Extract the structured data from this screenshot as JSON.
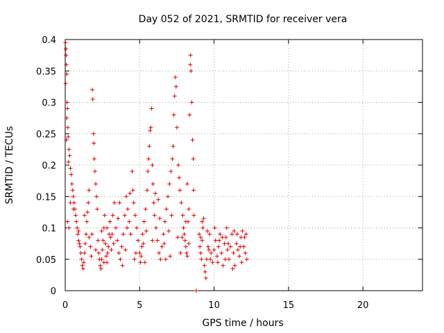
{
  "chart_data": {
    "type": "scatter",
    "title": "Day 052 of 2021, SRMTID for receiver vera",
    "xlabel": "GPS time / hours",
    "ylabel": "SRMTID / TECUs",
    "xlim": [
      0,
      24
    ],
    "ylim": [
      0,
      0.4
    ],
    "xticks": [
      0,
      5,
      10,
      15,
      20
    ],
    "xtick_labels": [
      "0",
      "5",
      "10",
      "15",
      "20"
    ],
    "yticks": [
      0,
      0.05,
      0.1,
      0.15,
      0.2,
      0.25,
      0.3,
      0.35,
      0.4
    ],
    "ytick_labels": [
      "0",
      "0.05",
      "0.1",
      "0.15",
      "0.2",
      "0.25",
      "0.3",
      "0.35",
      "0.4"
    ],
    "grid": true,
    "marker": "plus",
    "color": "#e00000",
    "series": [
      {
        "name": "SRMTID",
        "points": [
          [
            0.02,
            0.395
          ],
          [
            0.05,
            0.385
          ],
          [
            0.06,
            0.375
          ],
          [
            0.08,
            0.36
          ],
          [
            0.1,
            0.345
          ],
          [
            0.03,
            0.33
          ],
          [
            0.12,
            0.3
          ],
          [
            0.15,
            0.29
          ],
          [
            0.1,
            0.275
          ],
          [
            0.18,
            0.26
          ],
          [
            0.2,
            0.245
          ],
          [
            0.08,
            0.24
          ],
          [
            0.25,
            0.225
          ],
          [
            0.3,
            0.215
          ],
          [
            0.22,
            0.205
          ],
          [
            0.35,
            0.195
          ],
          [
            0.4,
            0.185
          ],
          [
            0.45,
            0.17
          ],
          [
            0.5,
            0.16
          ],
          [
            0.55,
            0.15
          ],
          [
            0.6,
            0.14
          ],
          [
            0.65,
            0.13
          ],
          [
            0.7,
            0.12
          ],
          [
            0.75,
            0.11
          ],
          [
            0.8,
            0.1
          ],
          [
            0.85,
            0.09
          ],
          [
            0.9,
            0.08
          ],
          [
            0.95,
            0.075
          ],
          [
            1.0,
            0.07
          ],
          [
            0.15,
            0.11
          ],
          [
            0.25,
            0.1
          ],
          [
            1.05,
            0.06
          ],
          [
            1.1,
            0.05
          ],
          [
            1.15,
            0.04
          ],
          [
            1.2,
            0.035
          ],
          [
            1.25,
            0.045
          ],
          [
            1.3,
            0.06
          ],
          [
            1.35,
            0.075
          ],
          [
            1.4,
            0.09
          ],
          [
            1.45,
            0.11
          ],
          [
            1.5,
            0.125
          ],
          [
            1.55,
            0.14
          ],
          [
            1.6,
            0.16
          ],
          [
            1.7,
            0.07
          ],
          [
            1.75,
            0.055
          ],
          [
            1.8,
            0.09
          ],
          [
            1.82,
            0.32
          ],
          [
            1.85,
            0.305
          ],
          [
            1.9,
            0.25
          ],
          [
            1.92,
            0.235
          ],
          [
            1.95,
            0.21
          ],
          [
            2.0,
            0.19
          ],
          [
            2.05,
            0.17
          ],
          [
            2.1,
            0.15
          ],
          [
            2.15,
            0.13
          ],
          [
            2.2,
            0.08
          ],
          [
            2.25,
            0.06
          ],
          [
            2.3,
            0.05
          ],
          [
            2.35,
            0.04
          ],
          [
            2.4,
            0.035
          ],
          [
            2.45,
            0.05
          ],
          [
            2.5,
            0.065
          ],
          [
            2.55,
            0.08
          ],
          [
            2.6,
            0.1
          ],
          [
            2.65,
            0.12
          ],
          [
            2.7,
            0.075
          ],
          [
            2.75,
            0.055
          ],
          [
            2.8,
            0.045
          ],
          [
            2.85,
            0.06
          ],
          [
            2.9,
            0.07
          ],
          [
            2.95,
            0.09
          ],
          [
            3.0,
            0.11
          ],
          [
            3.05,
            0.085
          ],
          [
            3.1,
            0.065
          ],
          [
            3.2,
            0.12
          ],
          [
            3.3,
            0.14
          ],
          [
            3.4,
            0.1
          ],
          [
            3.5,
            0.08
          ],
          [
            3.6,
            0.06
          ],
          [
            3.7,
            0.05
          ],
          [
            3.8,
            0.07
          ],
          [
            3.9,
            0.09
          ],
          [
            4.0,
            0.12
          ],
          [
            4.1,
            0.15
          ],
          [
            4.2,
            0.13
          ],
          [
            4.3,
            0.11
          ],
          [
            4.4,
            0.09
          ],
          [
            4.5,
            0.19
          ],
          [
            4.55,
            0.16
          ],
          [
            4.6,
            0.14
          ],
          [
            4.7,
            0.12
          ],
          [
            4.8,
            0.1
          ],
          [
            4.9,
            0.08
          ],
          [
            5.0,
            0.06
          ],
          [
            5.05,
            0.045
          ],
          [
            5.1,
            0.055
          ],
          [
            5.15,
            0.07
          ],
          [
            5.2,
            0.09
          ],
          [
            5.3,
            0.11
          ],
          [
            5.4,
            0.13
          ],
          [
            5.5,
            0.16
          ],
          [
            5.55,
            0.19
          ],
          [
            5.6,
            0.21
          ],
          [
            5.65,
            0.23
          ],
          [
            5.7,
            0.255
          ],
          [
            5.75,
            0.26
          ],
          [
            5.8,
            0.29
          ],
          [
            5.85,
            0.2
          ],
          [
            5.9,
            0.17
          ],
          [
            5.95,
            0.14
          ],
          [
            6.0,
            0.12
          ],
          [
            6.1,
            0.1
          ],
          [
            6.2,
            0.08
          ],
          [
            6.3,
            0.06
          ],
          [
            6.4,
            0.05
          ],
          [
            6.5,
            0.07
          ],
          [
            6.6,
            0.09
          ],
          [
            6.7,
            0.11
          ],
          [
            6.8,
            0.13
          ],
          [
            6.9,
            0.15
          ],
          [
            7.0,
            0.17
          ],
          [
            7.1,
            0.19
          ],
          [
            7.2,
            0.21
          ],
          [
            7.25,
            0.23
          ],
          [
            7.3,
            0.28
          ],
          [
            7.35,
            0.31
          ],
          [
            7.4,
            0.34
          ],
          [
            7.45,
            0.325
          ],
          [
            7.5,
            0.26
          ],
          [
            7.6,
            0.2
          ],
          [
            7.65,
            0.18
          ],
          [
            7.7,
            0.16
          ],
          [
            7.8,
            0.14
          ],
          [
            7.9,
            0.12
          ],
          [
            7.95,
            0.1
          ],
          [
            8.0,
            0.09
          ],
          [
            8.05,
            0.08
          ],
          [
            8.1,
            0.07
          ],
          [
            8.15,
            0.06
          ],
          [
            8.2,
            0.055
          ],
          [
            8.25,
            0.11
          ],
          [
            8.3,
            0.13
          ],
          [
            8.35,
            0.28
          ],
          [
            8.4,
            0.36
          ],
          [
            8.42,
            0.375
          ],
          [
            8.45,
            0.35
          ],
          [
            8.5,
            0.3
          ],
          [
            8.55,
            0.24
          ],
          [
            8.6,
            0.21
          ],
          [
            8.62,
            0.16
          ],
          [
            8.65,
            0.12
          ],
          [
            8.8,
            0.0
          ],
          [
            9.0,
            0.09
          ],
          [
            9.05,
            0.07
          ],
          [
            9.1,
            0.06
          ],
          [
            9.15,
            0.05
          ],
          [
            9.2,
            0.08
          ],
          [
            9.25,
            0.1
          ],
          [
            9.3,
            0.115
          ],
          [
            9.35,
            0.04
          ],
          [
            9.4,
            0.03
          ],
          [
            9.45,
            0.02
          ],
          [
            9.5,
            0.05
          ],
          [
            9.6,
            0.07
          ],
          [
            9.7,
            0.09
          ],
          [
            9.8,
            0.06
          ],
          [
            9.9,
            0.045
          ],
          [
            10.0,
            0.065
          ],
          [
            10.1,
            0.08
          ],
          [
            10.2,
            0.055
          ],
          [
            10.3,
            0.07
          ],
          [
            10.4,
            0.09
          ],
          [
            10.5,
            0.06
          ],
          [
            10.6,
            0.04
          ],
          [
            10.7,
            0.075
          ],
          [
            10.8,
            0.085
          ],
          [
            10.9,
            0.065
          ],
          [
            11.0,
            0.05
          ],
          [
            11.1,
            0.07
          ],
          [
            11.2,
            0.09
          ],
          [
            11.3,
            0.06
          ],
          [
            11.4,
            0.04
          ],
          [
            11.5,
            0.075
          ],
          [
            11.6,
            0.065
          ],
          [
            11.7,
            0.055
          ],
          [
            11.8,
            0.085
          ],
          [
            11.9,
            0.095
          ],
          [
            12.0,
            0.07
          ],
          [
            12.1,
            0.06
          ],
          [
            12.2,
            0.05
          ],
          [
            0.35,
            0.14
          ],
          [
            0.55,
            0.13
          ],
          [
            0.9,
            0.095
          ],
          [
            1.6,
            0.085
          ],
          [
            2.05,
            0.065
          ],
          [
            2.45,
            0.095
          ],
          [
            2.8,
            0.1
          ],
          [
            3.25,
            0.075
          ],
          [
            3.55,
            0.115
          ],
          [
            3.85,
            0.04
          ],
          [
            4.05,
            0.065
          ],
          [
            4.35,
            0.155
          ],
          [
            4.75,
            0.06
          ],
          [
            5.25,
            0.075
          ],
          [
            5.45,
            0.095
          ],
          [
            6.05,
            0.155
          ],
          [
            6.35,
            0.115
          ],
          [
            6.65,
            0.075
          ],
          [
            6.95,
            0.095
          ],
          [
            7.15,
            0.12
          ],
          [
            7.55,
            0.085
          ],
          [
            7.75,
            0.06
          ],
          [
            8.1,
            0.11
          ],
          [
            8.3,
            0.075
          ],
          [
            9.2,
            0.11
          ],
          [
            9.55,
            0.095
          ],
          [
            9.75,
            0.05
          ],
          [
            10.05,
            0.1
          ],
          [
            10.25,
            0.045
          ],
          [
            10.55,
            0.085
          ],
          [
            10.75,
            0.05
          ],
          [
            10.95,
            0.075
          ],
          [
            11.25,
            0.035
          ],
          [
            11.55,
            0.09
          ],
          [
            11.85,
            0.045
          ],
          [
            12.05,
            0.085
          ],
          [
            1.3,
            0.12
          ],
          [
            2.6,
            0.045
          ],
          [
            3.15,
            0.09
          ],
          [
            3.65,
            0.14
          ],
          [
            4.15,
            0.1
          ],
          [
            4.65,
            0.05
          ],
          [
            5.35,
            0.045
          ],
          [
            5.85,
            0.08
          ],
          [
            6.25,
            0.145
          ],
          [
            6.75,
            0.05
          ],
          [
            7.05,
            0.055
          ],
          [
            7.85,
            0.085
          ],
          [
            8.2,
            0.17
          ],
          [
            9.1,
            0.085
          ],
          [
            9.65,
            0.065
          ],
          [
            10.35,
            0.08
          ],
          [
            10.85,
            0.1
          ],
          [
            11.35,
            0.095
          ],
          [
            11.75,
            0.07
          ],
          [
            12.15,
            0.09
          ]
        ]
      }
    ]
  }
}
